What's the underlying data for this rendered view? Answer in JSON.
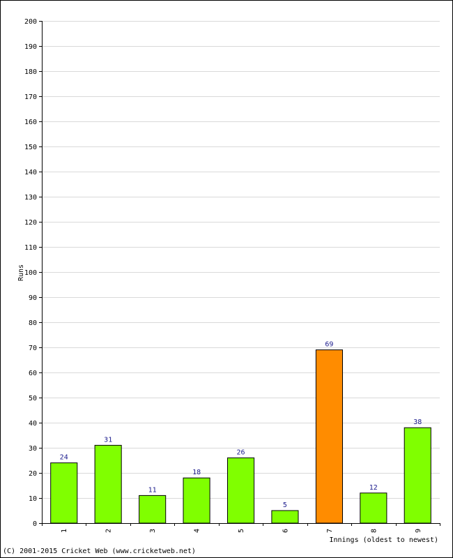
{
  "chart_data": {
    "type": "bar",
    "categories": [
      "1",
      "2",
      "3",
      "4",
      "5",
      "6",
      "7",
      "8",
      "9"
    ],
    "values": [
      24,
      31,
      11,
      18,
      26,
      5,
      69,
      12,
      38
    ],
    "ylabel": "Runs",
    "xlabel": "Innings (oldest to newest)",
    "ylim": [
      0,
      200
    ],
    "ytick_step": 10,
    "grid": true,
    "bar_color": "#80ff00",
    "highlight_color": "#ff8c00",
    "highlight_index": 6,
    "label_color": "#1a1a8c"
  },
  "footer": {
    "copyright": "(C) 2001-2015 Cricket Web (www.cricketweb.net)"
  }
}
